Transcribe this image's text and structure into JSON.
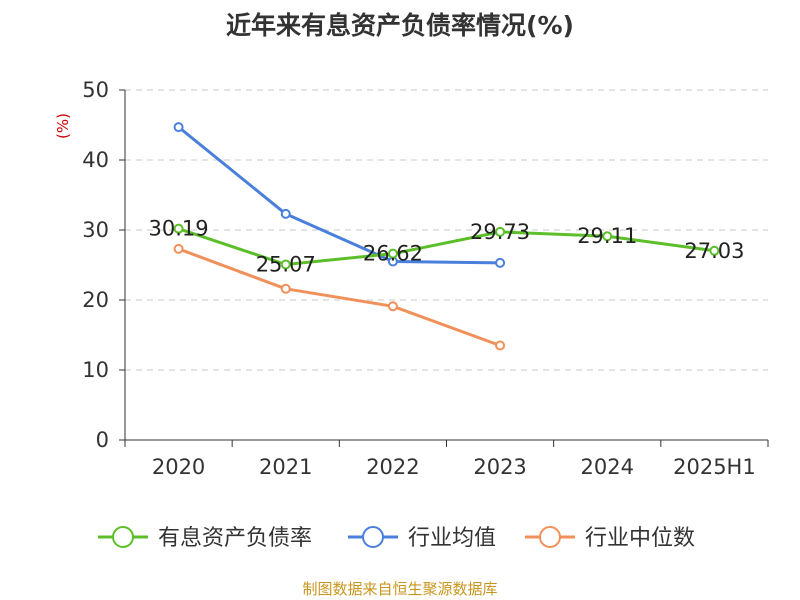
{
  "chart_data": {
    "type": "line",
    "title": "近年来有息资产负债率情况(%)",
    "ylabel": "(%)",
    "categories": [
      "2020",
      "2021",
      "2022",
      "2023",
      "2024",
      "2025H1"
    ],
    "ylim": [
      0,
      50
    ],
    "yticks": [
      0,
      10,
      20,
      30,
      40,
      50
    ],
    "grid": true,
    "legend_position": "bottom",
    "series": [
      {
        "name": "有息资产负债率",
        "color": "#5cbf2a",
        "values": [
          30.19,
          25.07,
          26.62,
          29.73,
          29.11,
          27.03
        ],
        "labels": [
          "30.19",
          "25.07",
          "26.62",
          "29.73",
          "29.11",
          "27.03"
        ]
      },
      {
        "name": "行业均值",
        "color": "#4a7fdb",
        "values": [
          44.7,
          32.3,
          25.5,
          25.3,
          null,
          null
        ]
      },
      {
        "name": "行业中位数",
        "color": "#f0905a",
        "values": [
          27.3,
          21.6,
          19.1,
          13.5,
          null,
          null
        ]
      }
    ],
    "source": "制图数据来自恒生聚源数据库"
  }
}
